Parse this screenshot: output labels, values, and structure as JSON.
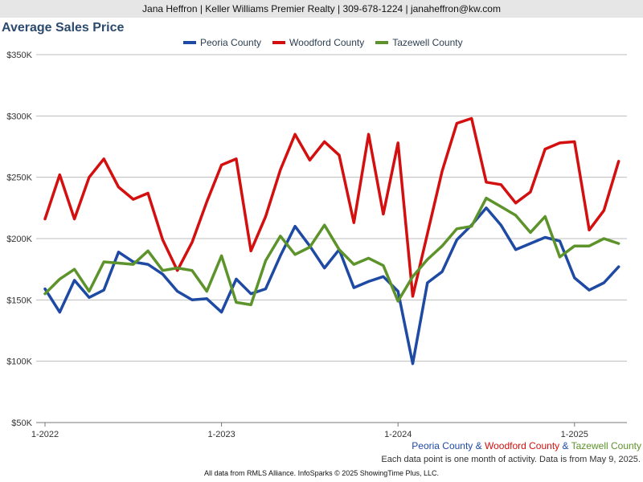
{
  "banner": "Jana Heffron | Keller Williams Premier Realty | 309-678-1224 | janaheffron@kw.com",
  "footer": "All data from RMLS Alliance. InfoSparks © 2025 ShowingTime Plus, LLC.",
  "note": "Each data point is one month of activity. Data is from May 9, 2025.",
  "bottom_series": {
    "peoria": "Peoria County",
    "sep1": " & ",
    "woodford": "Woodford County",
    "sep2": " & ",
    "tazewell": "Tazewell County"
  },
  "chart_data": {
    "type": "line",
    "title": "Average Sales Price",
    "xlabel": "",
    "ylabel": "",
    "ylim": [
      50000,
      350000
    ],
    "ytick_values": [
      50000,
      100000,
      150000,
      200000,
      250000,
      300000,
      350000
    ],
    "ytick_labels": [
      "$50K",
      "$100K",
      "$150K",
      "$200K",
      "$250K",
      "$300K",
      "$350K"
    ],
    "xtick_labels": [
      "1-2022",
      "1-2023",
      "1-2024",
      "1-2025"
    ],
    "xtick_indices": [
      0,
      12,
      24,
      36
    ],
    "legend_position": "top-center",
    "grid": true,
    "series": [
      {
        "name": "Peoria County",
        "color": "#1f4aa3",
        "values": [
          159000,
          140000,
          166000,
          152000,
          158000,
          189000,
          181000,
          179000,
          171000,
          157000,
          150000,
          151000,
          140000,
          167000,
          155000,
          159000,
          186000,
          210000,
          194000,
          176000,
          191000,
          160000,
          165000,
          169000,
          157000,
          98000,
          164000,
          173000,
          199000,
          211000,
          225000,
          211000,
          191000,
          196000,
          201000,
          198000,
          168000,
          158000,
          164000,
          177000
        ]
      },
      {
        "name": "Woodford County",
        "color": "#d40f0f",
        "values": [
          216000,
          252000,
          216000,
          250000,
          265000,
          242000,
          232000,
          237000,
          199000,
          174000,
          197000,
          230000,
          260000,
          265000,
          190000,
          218000,
          256000,
          285000,
          264000,
          279000,
          268000,
          213000,
          285000,
          220000,
          278000,
          153000,
          204000,
          255000,
          294000,
          298000,
          246000,
          244000,
          229000,
          238000,
          273000,
          278000,
          279000,
          207000,
          223000,
          263000
        ]
      },
      {
        "name": "Tazewell County",
        "color": "#5d932b",
        "values": [
          155000,
          167000,
          175000,
          157000,
          181000,
          180000,
          179000,
          190000,
          174000,
          176000,
          174000,
          157000,
          186000,
          148000,
          146000,
          182000,
          202000,
          187000,
          193000,
          211000,
          191000,
          179000,
          184000,
          178000,
          149000,
          169000,
          183000,
          194000,
          208000,
          210000,
          233000,
          226000,
          219000,
          205000,
          218000,
          185000,
          194000,
          194000,
          200000,
          196000
        ]
      }
    ]
  }
}
